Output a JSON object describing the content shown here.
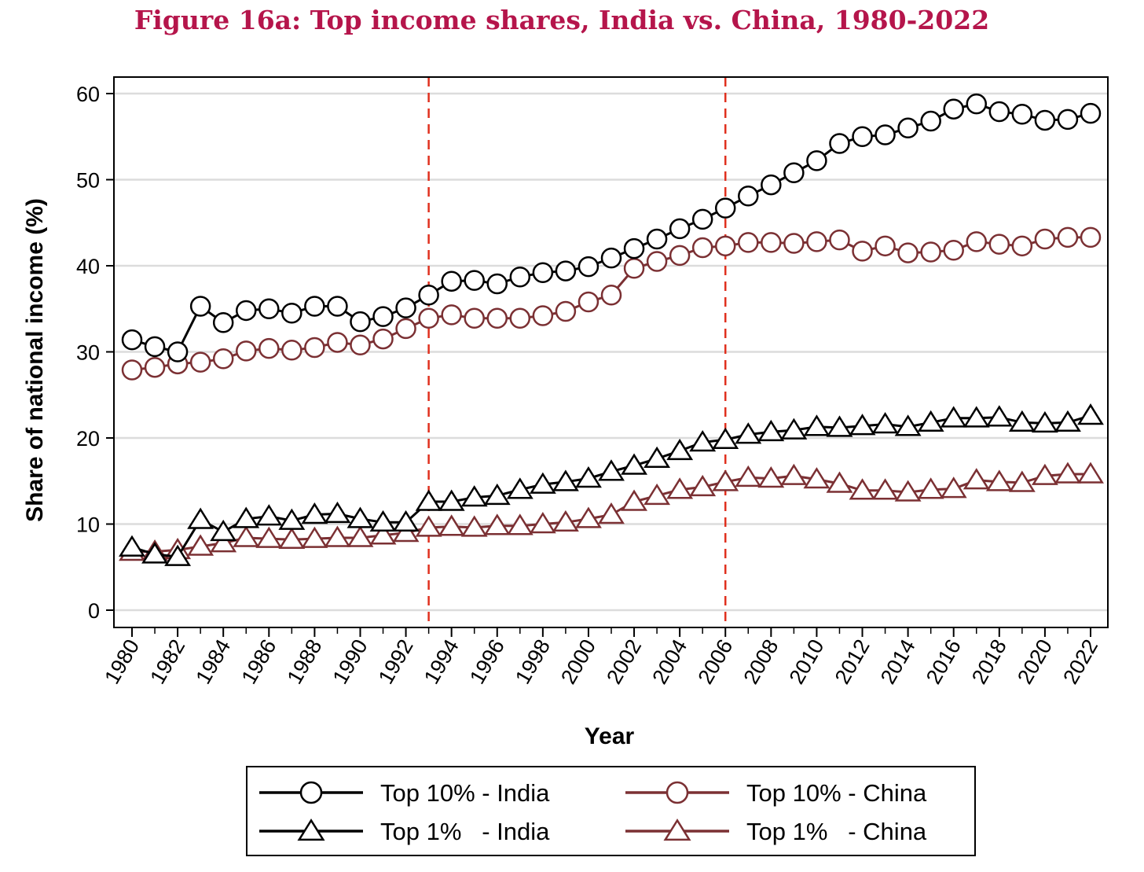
{
  "title": "Figure 16a: Top income shares, India vs. China, 1980-2022",
  "chart_data": {
    "type": "line",
    "title": "Figure 16a: Top income shares, India vs. China, 1980-2022",
    "xlabel": "Year",
    "ylabel": "Share of national income (%)",
    "xlim": [
      1980,
      2022
    ],
    "ylim": [
      0,
      60
    ],
    "x_ticks": [
      1980,
      1982,
      1984,
      1986,
      1988,
      1990,
      1992,
      1994,
      1996,
      1998,
      2000,
      2002,
      2004,
      2006,
      2008,
      2010,
      2012,
      2014,
      2016,
      2018,
      2020,
      2022
    ],
    "y_ticks": [
      0,
      10,
      20,
      30,
      40,
      50,
      60
    ],
    "grid": "horizontal",
    "legend_position": "bottom",
    "vertical_reference_lines": [
      1993,
      2006
    ],
    "x": [
      1980,
      1981,
      1982,
      1983,
      1984,
      1985,
      1986,
      1987,
      1988,
      1989,
      1990,
      1991,
      1992,
      1993,
      1994,
      1995,
      1996,
      1997,
      1998,
      1999,
      2000,
      2001,
      2002,
      2003,
      2004,
      2005,
      2006,
      2007,
      2008,
      2009,
      2010,
      2011,
      2012,
      2013,
      2014,
      2015,
      2016,
      2017,
      2018,
      2019,
      2020,
      2021,
      2022
    ],
    "series": [
      {
        "name": "Top 10% - India",
        "color": "#000000",
        "marker": "circle",
        "values": [
          31.4,
          30.6,
          30.0,
          35.3,
          33.4,
          34.8,
          35.0,
          34.5,
          35.3,
          35.3,
          33.5,
          34.1,
          35.1,
          36.6,
          38.2,
          38.3,
          37.9,
          38.7,
          39.2,
          39.4,
          39.9,
          40.9,
          42.0,
          43.1,
          44.3,
          45.4,
          46.7,
          48.1,
          49.4,
          50.8,
          52.2,
          54.2,
          55.0,
          55.2,
          56.0,
          56.8,
          58.2,
          58.8,
          57.9,
          57.6,
          56.9,
          57.0,
          57.7
        ]
      },
      {
        "name": "Top 10% - China",
        "color": "#7b3033",
        "marker": "circle",
        "values": [
          27.9,
          28.2,
          28.6,
          28.8,
          29.2,
          30.1,
          30.4,
          30.2,
          30.5,
          31.1,
          30.8,
          31.5,
          32.7,
          33.9,
          34.3,
          33.9,
          33.9,
          33.9,
          34.2,
          34.7,
          35.8,
          36.6,
          39.7,
          40.5,
          41.2,
          42.1,
          42.3,
          42.7,
          42.7,
          42.6,
          42.8,
          43.0,
          41.7,
          42.3,
          41.5,
          41.6,
          41.8,
          42.8,
          42.5,
          42.3,
          43.1,
          43.3,
          43.3
        ]
      },
      {
        "name": "Top 1%   - India",
        "color": "#000000",
        "marker": "triangle",
        "values": [
          7.3,
          6.5,
          6.2,
          10.5,
          9.1,
          10.6,
          10.9,
          10.4,
          11.1,
          11.2,
          10.6,
          10.2,
          10.2,
          12.6,
          12.6,
          13.1,
          13.3,
          14.0,
          14.6,
          14.9,
          15.3,
          16.1,
          16.8,
          17.6,
          18.5,
          19.5,
          19.8,
          20.4,
          20.7,
          20.9,
          21.3,
          21.2,
          21.4,
          21.6,
          21.3,
          21.8,
          22.3,
          22.3,
          22.4,
          21.8,
          21.7,
          21.8,
          22.6
        ]
      },
      {
        "name": "Top 1%   - China",
        "color": "#7b3033",
        "marker": "triangle",
        "values": [
          6.8,
          6.8,
          7.0,
          7.4,
          7.8,
          8.4,
          8.3,
          8.2,
          8.3,
          8.4,
          8.4,
          8.7,
          9.0,
          9.6,
          9.7,
          9.6,
          9.8,
          9.8,
          10.0,
          10.2,
          10.6,
          11.1,
          12.6,
          13.3,
          14.0,
          14.3,
          14.9,
          15.4,
          15.3,
          15.6,
          15.2,
          14.7,
          13.9,
          13.9,
          13.7,
          14.0,
          14.1,
          15.1,
          14.9,
          14.8,
          15.6,
          15.8,
          15.8
        ]
      }
    ]
  }
}
